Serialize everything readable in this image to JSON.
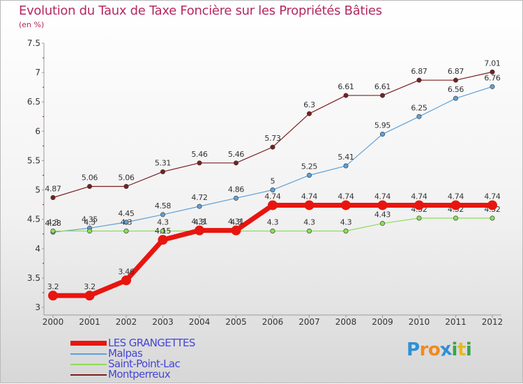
{
  "title": "Evolution du Taux de Taxe Foncière sur les Propriétés Bâties",
  "unit": "(en %)",
  "logo": {
    "letters": [
      "P",
      "r",
      "o",
      "x",
      "i",
      "t",
      "i"
    ],
    "colors": [
      "#2f8fd6",
      "#f08a1f",
      "#f08a1f",
      "#2f8fd6",
      "#3aa34a",
      "#e8b81f",
      "#3aa34a"
    ]
  },
  "chart_data": {
    "type": "line",
    "x": [
      "2000",
      "2001",
      "2002",
      "2003",
      "2004",
      "2005",
      "2006",
      "2007",
      "2008",
      "2009",
      "2010",
      "2011",
      "2012"
    ],
    "ylim": [
      3,
      7.5
    ],
    "yticks": [
      "3",
      "3.5",
      "4",
      "4.5",
      "5",
      "5.5",
      "6",
      "6.5",
      "7",
      "7.5"
    ],
    "grid": false,
    "legend_position": "bottom-left",
    "series": [
      {
        "name": "Montperreux",
        "color": "#7a1f22",
        "width": 1.2,
        "values": [
          4.87,
          5.06,
          5.06,
          5.31,
          5.46,
          5.46,
          5.73,
          6.3,
          6.61,
          6.61,
          6.87,
          6.87,
          7.01
        ],
        "labels": [
          "4.87",
          "5.06",
          "5.06",
          "5.31",
          "5.46",
          "5.46",
          "5.73",
          "6.3",
          "6.61",
          "6.61",
          "6.87",
          "6.87",
          "7.01"
        ]
      },
      {
        "name": "Malpas",
        "color": "#5f9fd6",
        "width": 1.2,
        "values": [
          4.28,
          4.35,
          4.45,
          4.58,
          4.72,
          4.86,
          5,
          5.25,
          5.41,
          5.95,
          6.25,
          6.56,
          6.76
        ],
        "labels": [
          "4.28",
          "4.35",
          "4.45",
          "4.58",
          "4.72",
          "4.86",
          "5",
          "5.25",
          "5.41",
          "5.95",
          "6.25",
          "6.56",
          "6.76"
        ]
      },
      {
        "name": "Saint-Point-Lac",
        "color": "#8edc5a",
        "width": 1.2,
        "values": [
          4.3,
          4.3,
          4.3,
          4.3,
          4.3,
          4.3,
          4.3,
          4.3,
          4.3,
          4.43,
          4.52,
          4.52,
          4.52
        ],
        "labels": [
          "4.3",
          "4.3",
          "4.3",
          "4.3",
          "4.3",
          "4.3",
          "4.3",
          "4.3",
          "4.3",
          "4.43",
          "4.52",
          "4.52",
          "4.52"
        ]
      },
      {
        "name": "LES GRANGETTES",
        "color": "#e8150f",
        "width": 7,
        "values": [
          3.2,
          3.2,
          3.46,
          4.15,
          4.31,
          4.31,
          4.74,
          4.74,
          4.74,
          4.74,
          4.74,
          4.74,
          4.74
        ],
        "labels": [
          "3.2",
          "3.2",
          "3.46",
          "4.15",
          "4.31",
          "4.31",
          "4.74",
          "4.74",
          "4.74",
          "4.74",
          "4.74",
          "4.74",
          "4.74"
        ]
      }
    ],
    "legend": [
      "LES GRANGETTES",
      "Malpas",
      "Saint-Point-Lac",
      "Montperreux"
    ]
  }
}
